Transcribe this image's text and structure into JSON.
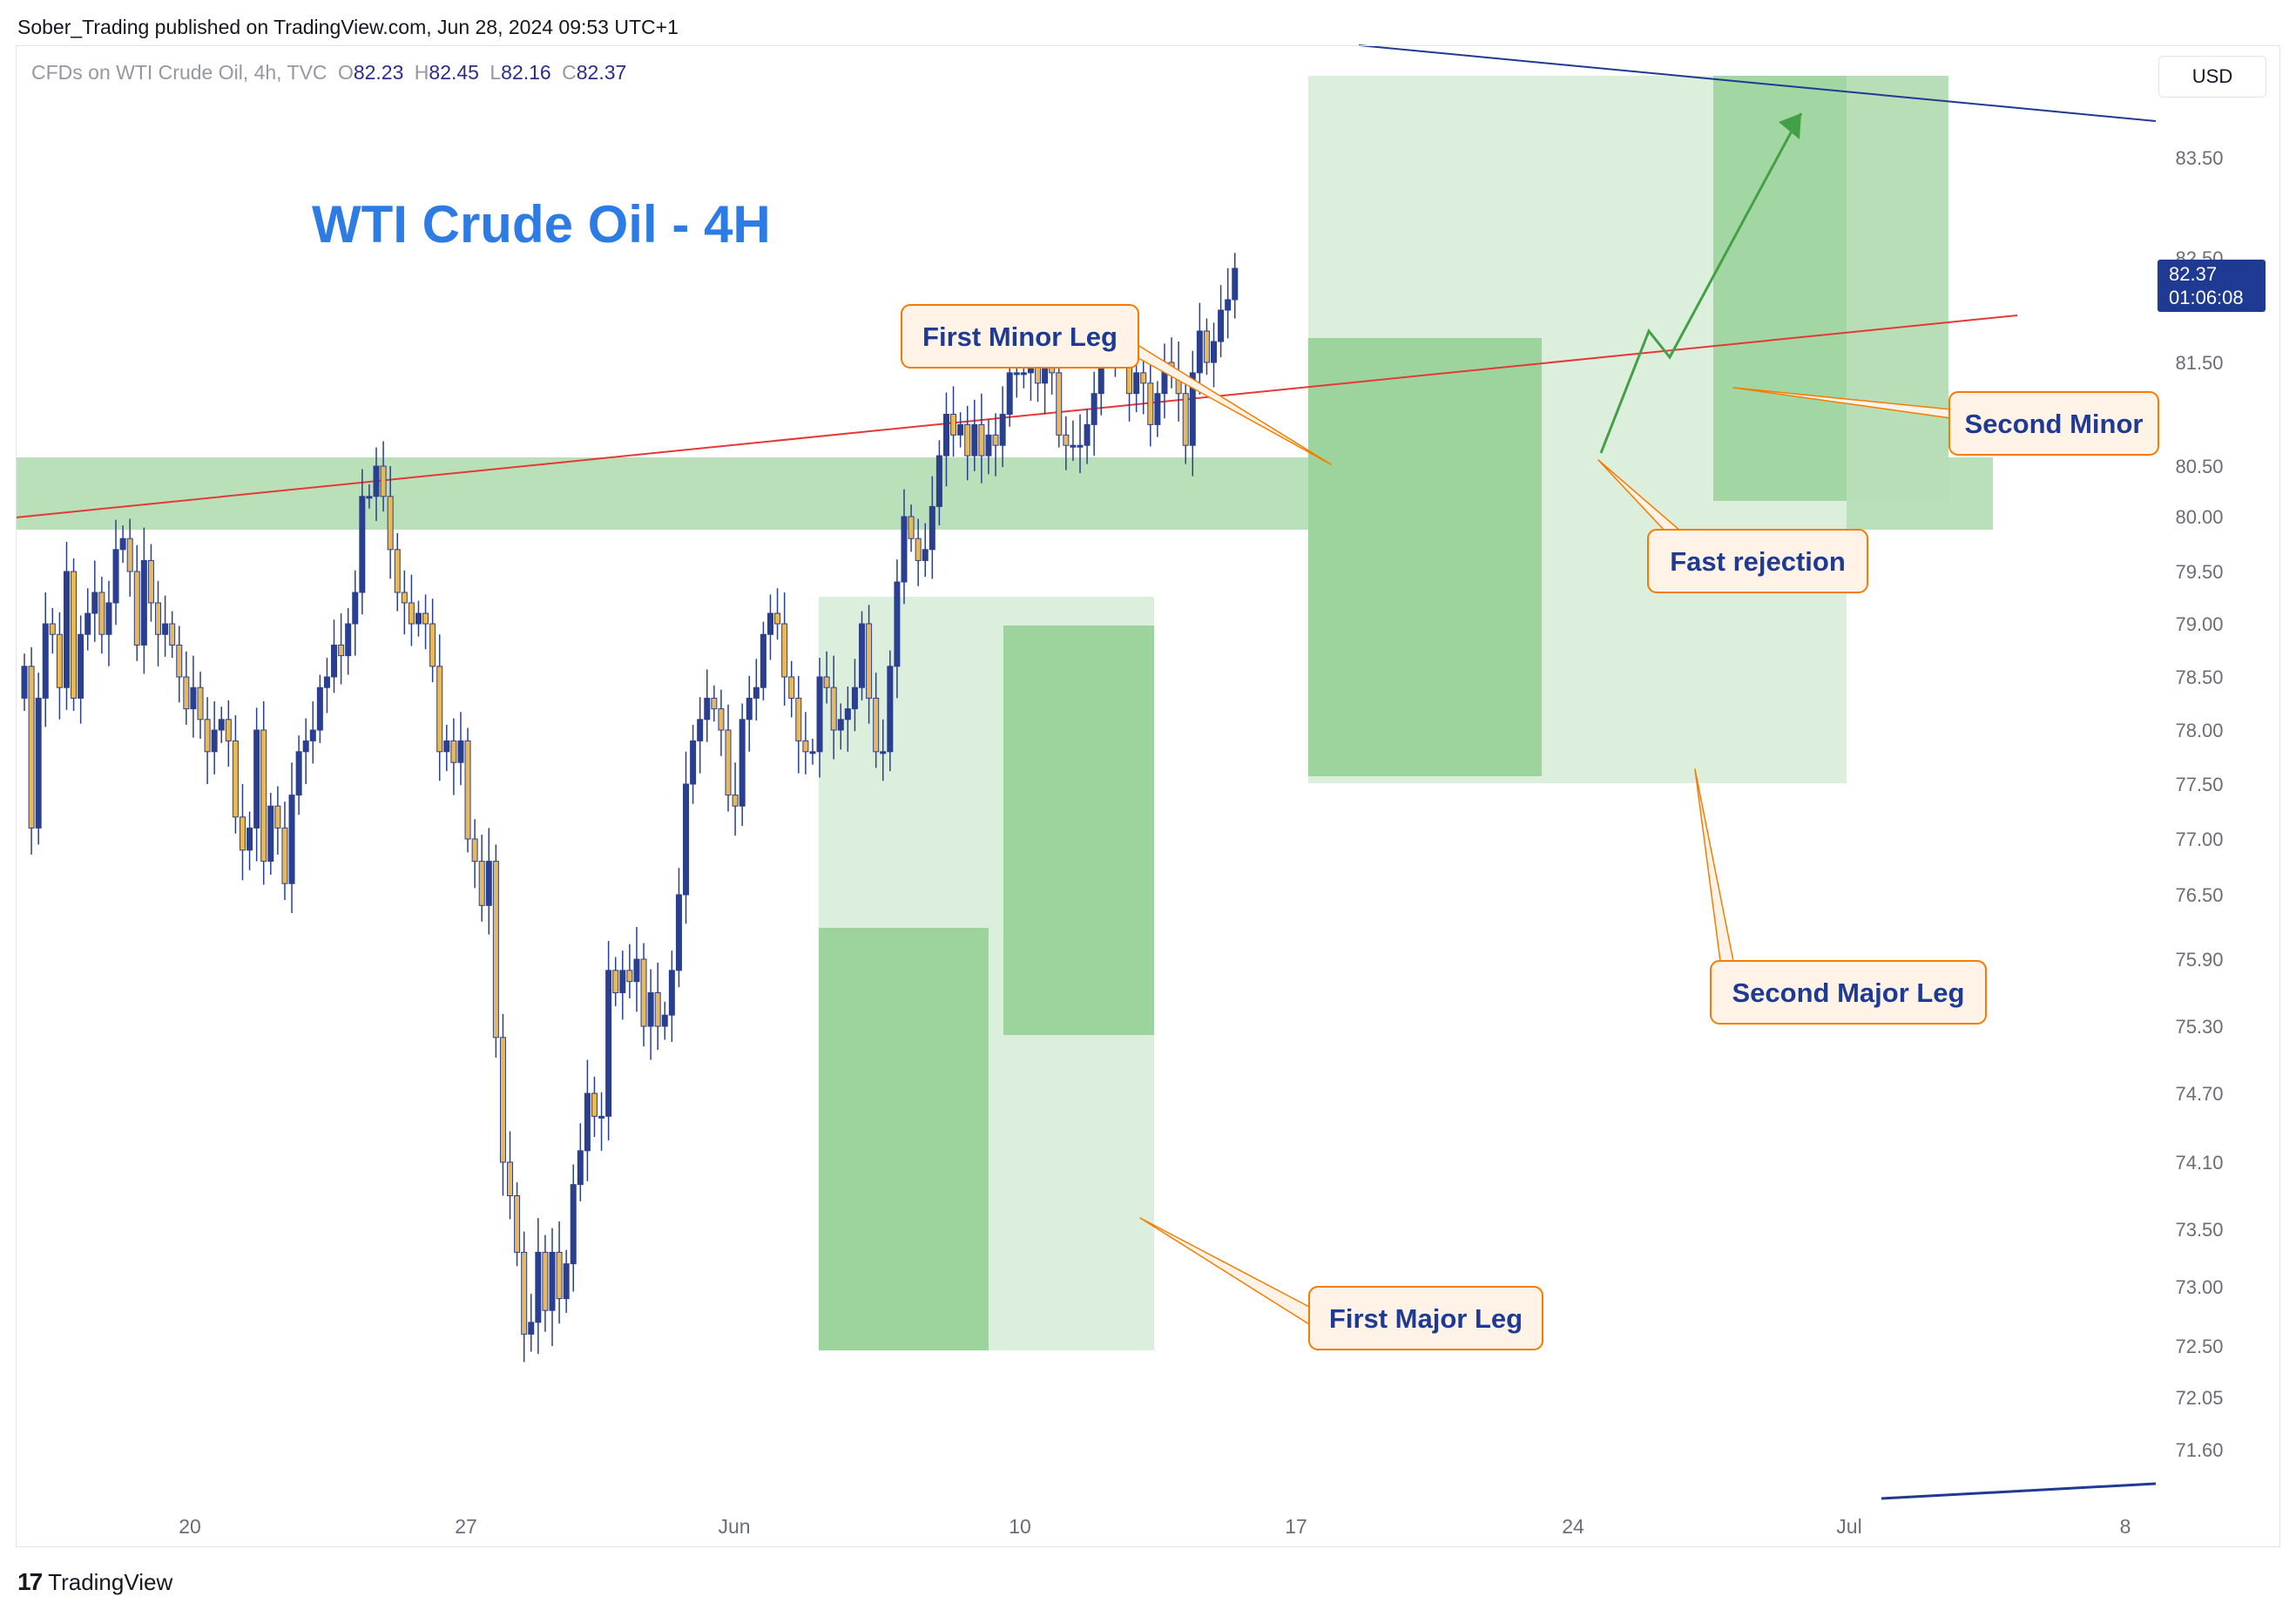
{
  "header": {
    "published_text": "Sober_Trading published on TradingView.com, Jun 28, 2024 09:53 UTC+1"
  },
  "legend": {
    "symbol": "CFDs on WTI Crude Oil, 4h, TVC",
    "open_label": "O",
    "open": "82.23",
    "high_label": "H",
    "high": "82.45",
    "low_label": "L",
    "low": "82.16",
    "close_label": "C",
    "close": "82.37"
  },
  "currency_button": "USD",
  "footer": {
    "brand": "TradingView"
  },
  "colors": {
    "candle_up": "#2a3f8f",
    "candle_down": "#e8b95a",
    "wick": "#2a3f8f",
    "zone_light": "#dcefdc",
    "zone_mid": "#b7deb7",
    "zone_dark": "#9dd49d",
    "callout_border": "#f57c00",
    "callout_fill": "#fff3e8",
    "callout_text": "#1f3a93",
    "title_text": "#2d7be5",
    "price_tag": "#1f3a93",
    "trend_red": "#e53935",
    "trend_blue": "#1f3a93",
    "arrow_green": "#43a047"
  },
  "chart_data": {
    "type": "candlestick",
    "title": "WTI Crude Oil - 4H",
    "ylim": [
      71.3,
      84.0
    ],
    "y_ticks": [
      "83.50",
      "82.50",
      "81.50",
      "80.50",
      "80.00",
      "79.50",
      "79.00",
      "78.50",
      "78.00",
      "77.50",
      "77.00",
      "76.50",
      "75.90",
      "75.30",
      "74.70",
      "74.10",
      "73.50",
      "73.00",
      "72.50",
      "72.05",
      "71.60"
    ],
    "x_ticks": [
      "20",
      "27",
      "Jun",
      "10",
      "17",
      "24",
      "Jul",
      "8"
    ],
    "last_price": "82.37",
    "countdown": "01:06:08",
    "closes": [
      78.6,
      77.1,
      78.3,
      79.0,
      78.9,
      78.4,
      79.5,
      78.3,
      78.9,
      79.1,
      79.3,
      78.9,
      79.2,
      79.7,
      79.8,
      79.5,
      78.8,
      79.6,
      79.2,
      78.9,
      79.0,
      78.8,
      78.5,
      78.2,
      78.4,
      78.1,
      77.8,
      78.0,
      78.1,
      77.9,
      77.2,
      76.9,
      77.1,
      78.0,
      76.8,
      77.3,
      77.1,
      76.6,
      77.4,
      77.8,
      77.9,
      78.0,
      78.4,
      78.5,
      78.8,
      78.7,
      79.0,
      79.3,
      80.2,
      80.2,
      80.5,
      80.2,
      79.7,
      79.3,
      79.2,
      79.0,
      79.1,
      79.0,
      78.6,
      77.8,
      77.9,
      77.7,
      77.9,
      77.0,
      76.8,
      76.4,
      76.8,
      75.2,
      74.1,
      73.8,
      73.3,
      72.6,
      72.7,
      73.3,
      72.8,
      73.3,
      72.9,
      73.2,
      73.9,
      74.2,
      74.7,
      74.5,
      74.5,
      75.8,
      75.6,
      75.8,
      75.7,
      75.9,
      75.3,
      75.6,
      75.3,
      75.4,
      75.8,
      76.5,
      77.5,
      77.9,
      78.1,
      78.3,
      78.2,
      78.0,
      77.4,
      77.3,
      78.1,
      78.3,
      78.4,
      78.9,
      79.1,
      79.0,
      78.5,
      78.3,
      77.9,
      77.8,
      77.8,
      78.5,
      78.4,
      78.0,
      78.1,
      78.2,
      78.4,
      79.0,
      78.3,
      77.8,
      77.8,
      78.6,
      79.4,
      80.0,
      79.8,
      79.6,
      79.7,
      80.1,
      80.6,
      81.0,
      80.8,
      80.9,
      80.6,
      80.9,
      80.6,
      80.8,
      80.7,
      81.0,
      81.4,
      81.4,
      81.4,
      81.5,
      81.3,
      81.5,
      81.4,
      80.8,
      80.7,
      80.7,
      80.7,
      80.9,
      81.2,
      81.6,
      81.6,
      81.6,
      81.6,
      81.2,
      81.4,
      81.3,
      80.9,
      81.2,
      81.5,
      81.4,
      81.2,
      80.7,
      81.4,
      81.8,
      81.5,
      81.7,
      82.0,
      82.1,
      82.4
    ]
  },
  "annotations": {
    "first_minor_leg": "First Minor Leg",
    "second_minor_leg": "Second Minor",
    "fast_rejection": "Fast rejection",
    "second_major_leg": "Second Major Leg",
    "first_major_leg": "First Major Leg"
  }
}
